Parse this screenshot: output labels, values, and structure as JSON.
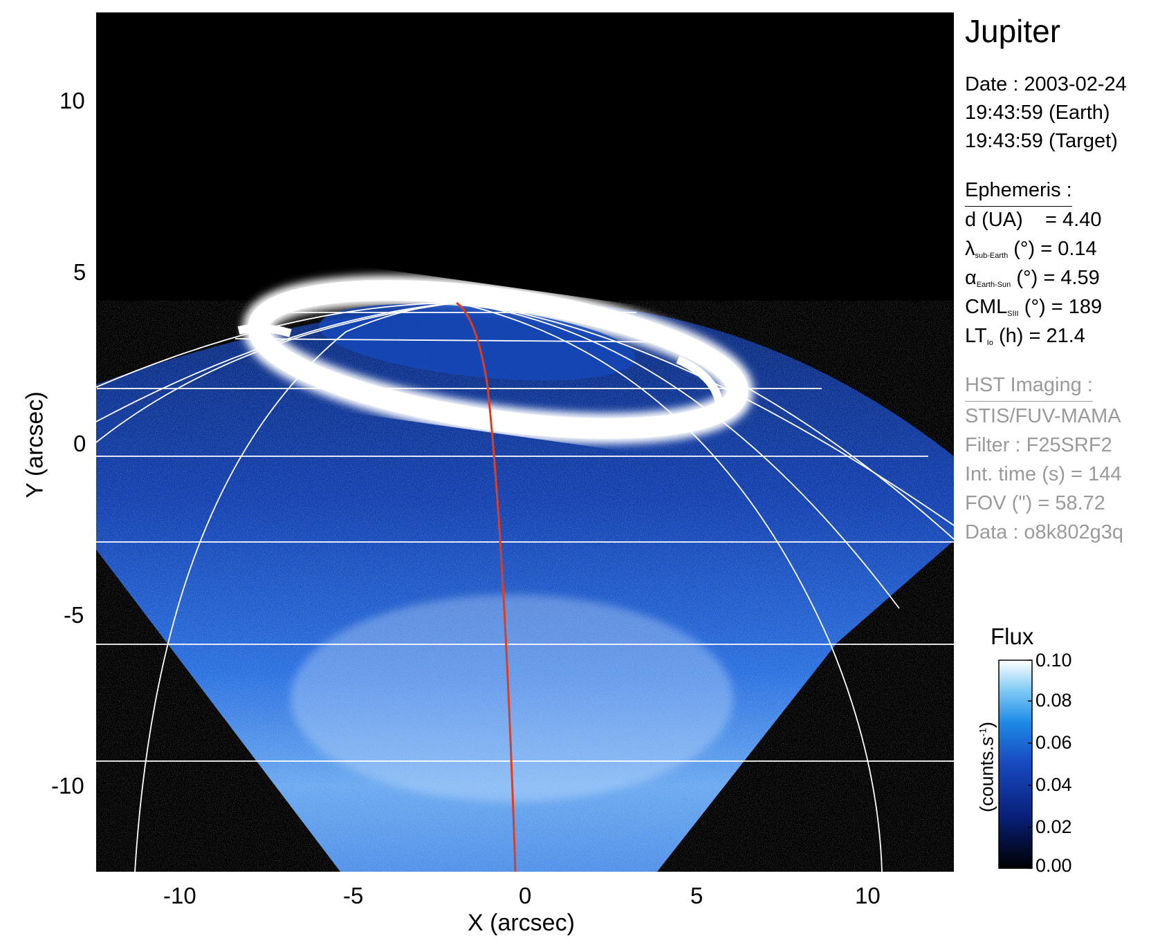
{
  "figure": {
    "planet": "Jupiter",
    "date_line": "Date : 2003-02-24",
    "earth_time": "19:43:59 (Earth)",
    "target_time": "19:43:59 (Target)",
    "ephemeris": {
      "header": "Ephemeris :",
      "rows": [
        {
          "sym": "d (UA)",
          "sub": "",
          "rest": "    = 4.40"
        },
        {
          "sym": "λ",
          "sub": "sub-Earth",
          "rest": " (°) = 0.14"
        },
        {
          "sym": "α",
          "sub": "Earth-Sun",
          "rest": " (°) = 4.59"
        },
        {
          "sym": "CML",
          "sub": "SIII",
          "rest": " (°) = 189"
        },
        {
          "sym": "LT",
          "sub": "Io",
          "rest": " (h) = 21.4"
        }
      ]
    },
    "imaging": {
      "header": "HST Imaging :",
      "lines": [
        "STIS/FUV-MAMA",
        "Filter : F25SRF2",
        "Int. time (s) = 144",
        "FOV (\") = 58.72",
        "Data : o8k802g3q"
      ]
    },
    "axes": {
      "xlabel": "X (arcsec)",
      "ylabel": "Y (arcsec)",
      "xticks": [
        "-10",
        "-5",
        "0",
        "5",
        "10"
      ],
      "yticks": [
        "10",
        "5",
        "0",
        "-5",
        "-10"
      ],
      "xlim": [
        -12.5,
        12.5
      ],
      "ylim": [
        -12.5,
        12.5
      ]
    },
    "colorbar": {
      "title": "Flux",
      "unit_label": "(counts.s",
      "unit_sup": "-1",
      "unit_close": ")",
      "ticks": [
        "0.10",
        "0.08",
        "0.06",
        "0.04",
        "0.02",
        "0.00"
      ],
      "range": [
        0.0,
        0.1
      ]
    },
    "colors": {
      "background": "#000000",
      "disk_blue": "#1450c8",
      "aurora": "#ffffff",
      "meridian": "#e03c1e",
      "grid": "#ffffff"
    }
  }
}
